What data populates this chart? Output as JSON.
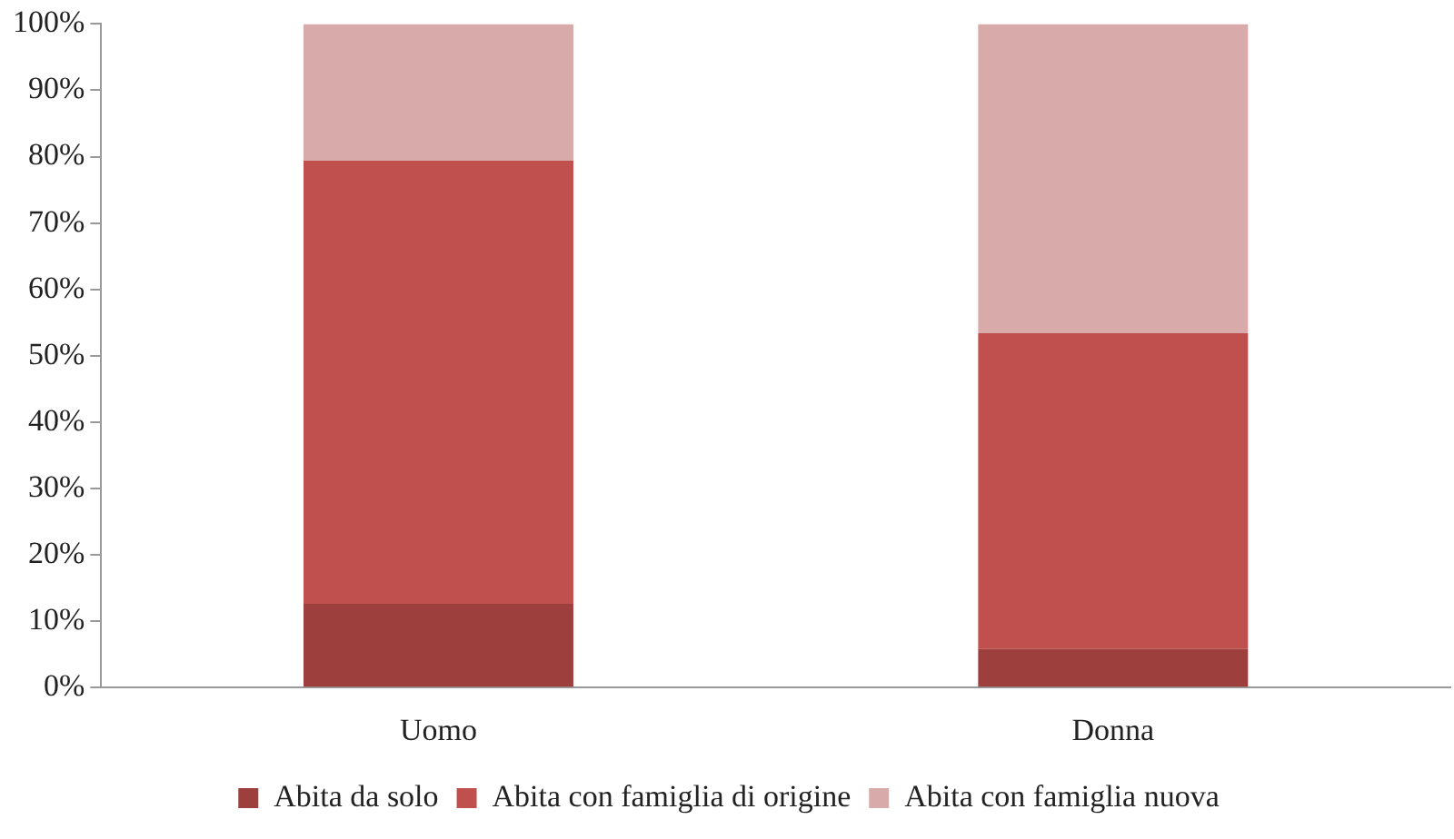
{
  "chart_data": {
    "type": "bar",
    "stacked": true,
    "categories": [
      "Uomo",
      "Donna"
    ],
    "series": [
      {
        "name": "Abita da solo",
        "color": "#9c3f3d",
        "values": [
          12.6,
          5.8
        ]
      },
      {
        "name": "Abita con famiglia di origine",
        "color": "#c0504d",
        "values": [
          66.8,
          47.6
        ]
      },
      {
        "name": "Abita con famiglia nuova",
        "color": "#d9aaaa",
        "values": [
          20.6,
          46.6
        ]
      }
    ],
    "ylim": [
      0,
      100
    ],
    "yticks": [
      {
        "value": 0,
        "label": "0%"
      },
      {
        "value": 10,
        "label": "10%"
      },
      {
        "value": 20,
        "label": "20%"
      },
      {
        "value": 30,
        "label": "30%"
      },
      {
        "value": 40,
        "label": "40%"
      },
      {
        "value": 50,
        "label": "50%"
      },
      {
        "value": 60,
        "label": "60%"
      },
      {
        "value": 70,
        "label": "70%"
      },
      {
        "value": 80,
        "label": "80%"
      },
      {
        "value": 90,
        "label": "90%"
      },
      {
        "value": 100,
        "label": "100%"
      }
    ],
    "grid": false,
    "legend": "bottom"
  }
}
